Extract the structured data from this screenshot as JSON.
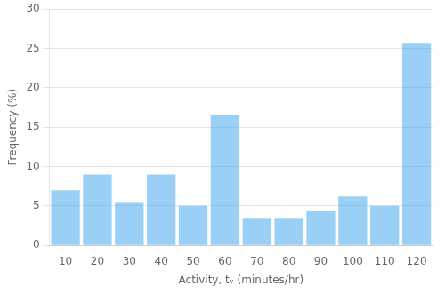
{
  "chart_data": {
    "type": "bar",
    "x": [
      10,
      20,
      30,
      40,
      50,
      60,
      70,
      80,
      90,
      100,
      110,
      120
    ],
    "values": [
      7.0,
      9.0,
      5.5,
      9.0,
      5.0,
      16.5,
      3.5,
      3.5,
      4.3,
      6.2,
      5.0,
      25.7
    ],
    "xlabel": "Activity, tᵥ (minutes/hr)",
    "ylabel": "Frequency (%)",
    "xlim": [
      5,
      125
    ],
    "xticks": [
      10,
      20,
      30,
      40,
      50,
      60,
      70,
      80,
      90,
      100,
      110,
      120
    ],
    "ylim": [
      0,
      30
    ],
    "yticks": [
      0,
      5,
      10,
      15,
      20,
      25,
      30
    ],
    "grid": true
  }
}
